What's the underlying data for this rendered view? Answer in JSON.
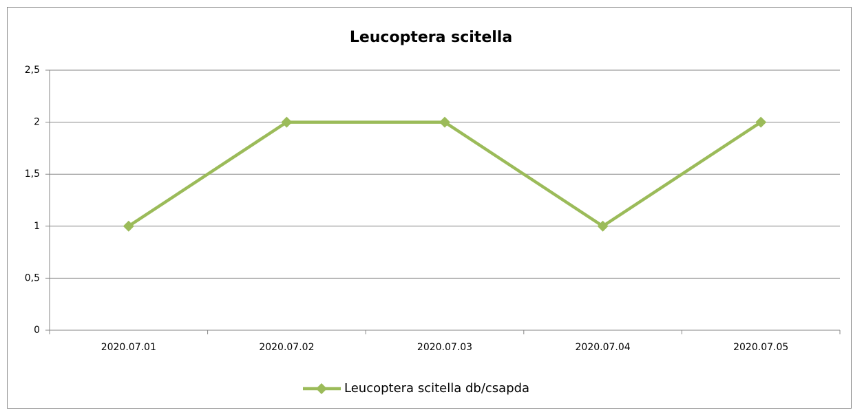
{
  "chart_data": {
    "type": "line",
    "title": "Leucoptera scitella",
    "categories": [
      "2020.07.01",
      "2020.07.02",
      "2020.07.03",
      "2020.07.04",
      "2020.07.05"
    ],
    "series": [
      {
        "name": "Leucoptera scitella db/csapda",
        "color": "#9bbb59",
        "values": [
          1,
          2,
          2,
          1,
          2
        ]
      }
    ],
    "ylim": [
      0,
      2.5
    ],
    "yticks": [
      0,
      {
        "value": 0.5,
        "label": "0,5"
      },
      1,
      {
        "value": 1.5,
        "label": "1,5"
      },
      2,
      {
        "value": 2.5,
        "label": "2,5"
      }
    ],
    "grid": true,
    "legend": "bottom"
  }
}
